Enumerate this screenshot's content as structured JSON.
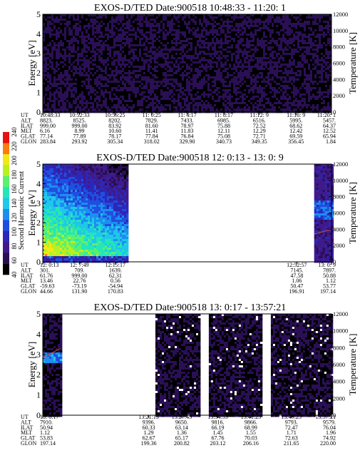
{
  "chart_data": [
    {
      "type": "heatmap",
      "title": "EXOS-D/TED  Date:900518  10:48:33 - 11:20: 1",
      "ylabel": "Energy [eV]",
      "ylabel_right": "Temperature [K]",
      "ylim": [
        0,
        5
      ],
      "ylim_right": [
        0,
        12000
      ],
      "yticks": [
        "0",
        "1",
        "2",
        "3",
        "4",
        "5"
      ],
      "yticks_right": [
        "0",
        "2000",
        "4000",
        "6000",
        "8000",
        "10000",
        "12000"
      ],
      "segments": [
        [
          0,
          1
        ]
      ],
      "dominant_level": 40,
      "temperature_trace": false,
      "ephemeris": {
        "row_labels": [
          "UT",
          "ALT",
          "ILAT",
          "MLT",
          "GLAT",
          "GLON"
        ],
        "columns": [
          {
            "UT": "10:48:33",
            "ALT": "8823.",
            "ILAT": "999.00",
            "MLT": "6.16",
            "GLAT": "77.14",
            "GLON": "283.84"
          },
          {
            "UT": "10:52:33",
            "ALT": "8525.",
            "ILAT": "999.00",
            "MLT": "8.99",
            "GLAT": "77.89",
            "GLON": "293.92"
          },
          {
            "UT": "10:56:25",
            "ALT": "8202.",
            "ILAT": "83.92",
            "MLT": "10.60",
            "GLAT": "78.17",
            "GLON": "305.34"
          },
          {
            "UT": "11: 0:25",
            "ALT": "7829.",
            "ILAT": "81.60",
            "MLT": "11.41",
            "GLAT": "77.84",
            "GLON": "318.02"
          },
          {
            "UT": "11: 4:17",
            "ALT": "7433.",
            "ILAT": "78.97",
            "MLT": "11.83",
            "GLAT": "76.84",
            "GLON": "329.90"
          },
          {
            "UT": "11: 8:17",
            "ALT": "6985.",
            "ILAT": "75.88",
            "MLT": "12.11",
            "GLAT": "75.08",
            "GLON": "340.73"
          },
          {
            "UT": "11:12: 9",
            "ALT": "6516.",
            "ILAT": "72.52",
            "MLT": "12.29",
            "GLAT": "72.71",
            "GLON": "349.35"
          },
          {
            "UT": "11:16: 9",
            "ALT": "5995.",
            "ILAT": "68.62",
            "MLT": "12.42",
            "GLAT": "69.59",
            "GLON": "356.45"
          },
          {
            "UT": "11:20: 1",
            "ALT": "5457.",
            "ILAT": "64.37",
            "MLT": "12.52",
            "GLAT": "65.94",
            "GLON": "1.84"
          }
        ]
      }
    },
    {
      "type": "heatmap",
      "title": "EXOS-D/TED  Date:900518  12: 0:13 - 13: 0: 9",
      "ylabel": "Energy [eV]",
      "ylabel_right": "Temperature [K]",
      "ylim": [
        0,
        5
      ],
      "ylim_right": [
        0,
        12000
      ],
      "yticks": [
        "0",
        "1",
        "2",
        "3",
        "4",
        "5"
      ],
      "yticks_right": [
        "0",
        "2000",
        "4000",
        "6000",
        "8000",
        "10000",
        "12000"
      ],
      "segments": [
        [
          0,
          0.29
        ],
        [
          0.94,
          1
        ]
      ],
      "dominant_level": 60,
      "temperature_trace": true,
      "colorbar": {
        "label": "Second Harmonic Current",
        "ticks": [
          "40",
          "60",
          "80",
          "100",
          "120",
          "140",
          "160",
          "180",
          "200",
          "220",
          "240"
        ],
        "colors": [
          "#000000",
          "#2a0f55",
          "#3f1a8a",
          "#2d27b8",
          "#1f4fe0",
          "#1d8ef0",
          "#1fc7e8",
          "#24e6b8",
          "#5cf070",
          "#b8f020",
          "#f0e818",
          "#ff7a10",
          "#e81010"
        ]
      },
      "ephemeris": {
        "row_labels": [
          "UT",
          "ALT",
          "ILAT",
          "MLT",
          "GLAT",
          "GLON"
        ],
        "columns": [
          {
            "UT": "12: 0:13",
            "ALT": "301.",
            "ILAT": "61.76",
            "MLT": "13.46",
            "GLAT": "-59.63",
            "GLON": "44.66"
          },
          {
            "UT": "12: 7:49",
            "ALT": "709.",
            "ILAT": "999.00",
            "MLT": "22.76",
            "GLAT": "-73.19",
            "GLON": "131.90"
          },
          {
            "UT": "12:15:17",
            "ALT": "1639.",
            "ILAT": "62.31",
            "MLT": "0.56",
            "GLAT": "-54.94",
            "GLON": "170.83"
          },
          {
            "UT": "12:52:57",
            "ALT": "7145.",
            "ILAT": "47.58",
            "MLT": "1.06",
            "GLAT": "50.47",
            "GLON": "196.91"
          },
          {
            "UT": "13: 0: 9",
            "ALT": "7897.",
            "ILAT": "50.88",
            "MLT": "1.12",
            "GLAT": "53.77",
            "GLON": "197.14"
          }
        ]
      }
    },
    {
      "type": "heatmap",
      "title": "EXOS-D/TED  Date:900518  13: 0:17 - 13:57:21",
      "ylabel": "Energy [eV]",
      "ylabel_right": "Temperature [K]",
      "ylim": [
        0,
        5
      ],
      "ylim_right": [
        0,
        12000
      ],
      "yticks": [
        "0",
        "1",
        "2",
        "3",
        "4",
        "5"
      ],
      "yticks_right": [
        "0",
        "2000",
        "4000",
        "6000",
        "8000",
        "10000",
        "12000"
      ],
      "segments": [
        [
          0,
          0.06
        ],
        [
          0.39,
          0.54
        ],
        [
          0.575,
          0.76
        ],
        [
          0.79,
          1
        ]
      ],
      "dominant_level": 40,
      "temperature_trace": true,
      "ephemeris": {
        "row_labels": [
          "UT",
          "ALT",
          "ILAT",
          "MLT",
          "GLAT",
          "GLON"
        ],
        "columns": [
          {
            "UT": "13: 0:17",
            "ALT": "7910.",
            "ILAT": "50.94",
            "MLT": "1.12",
            "GLAT": "53.83",
            "GLON": "197.14"
          },
          {
            "UT": "13:21:13",
            "ALT": "9396.",
            "ILAT": "60.33",
            "MLT": "1.29",
            "GLAT": "62.67",
            "GLON": "199.36"
          },
          {
            "UT": "13:27:45",
            "ALT": "9650.",
            "ILAT": "63.14",
            "MLT": "1.36",
            "GLAT": "65.17",
            "GLON": "200.82"
          },
          {
            "UT": "13:34:53",
            "ALT": "9816.",
            "ILAT": "66.19",
            "MLT": "1.45",
            "GLAT": "67.76",
            "GLON": "203.12"
          },
          {
            "UT": "13:41:25",
            "ALT": "9866.",
            "ILAT": "68.99",
            "MLT": "1.55",
            "GLAT": "70.03",
            "GLON": "206.16"
          },
          {
            "UT": "13:49:25",
            "ALT": "9793.",
            "ILAT": "72.47",
            "MLT": "1.71",
            "GLAT": "72.63",
            "GLON": "211.65"
          },
          {
            "UT": "13:57:21",
            "ALT": "9579.",
            "ILAT": "76.04",
            "MLT": "1.96",
            "GLAT": "74.92",
            "GLON": "220.00"
          }
        ]
      }
    }
  ]
}
